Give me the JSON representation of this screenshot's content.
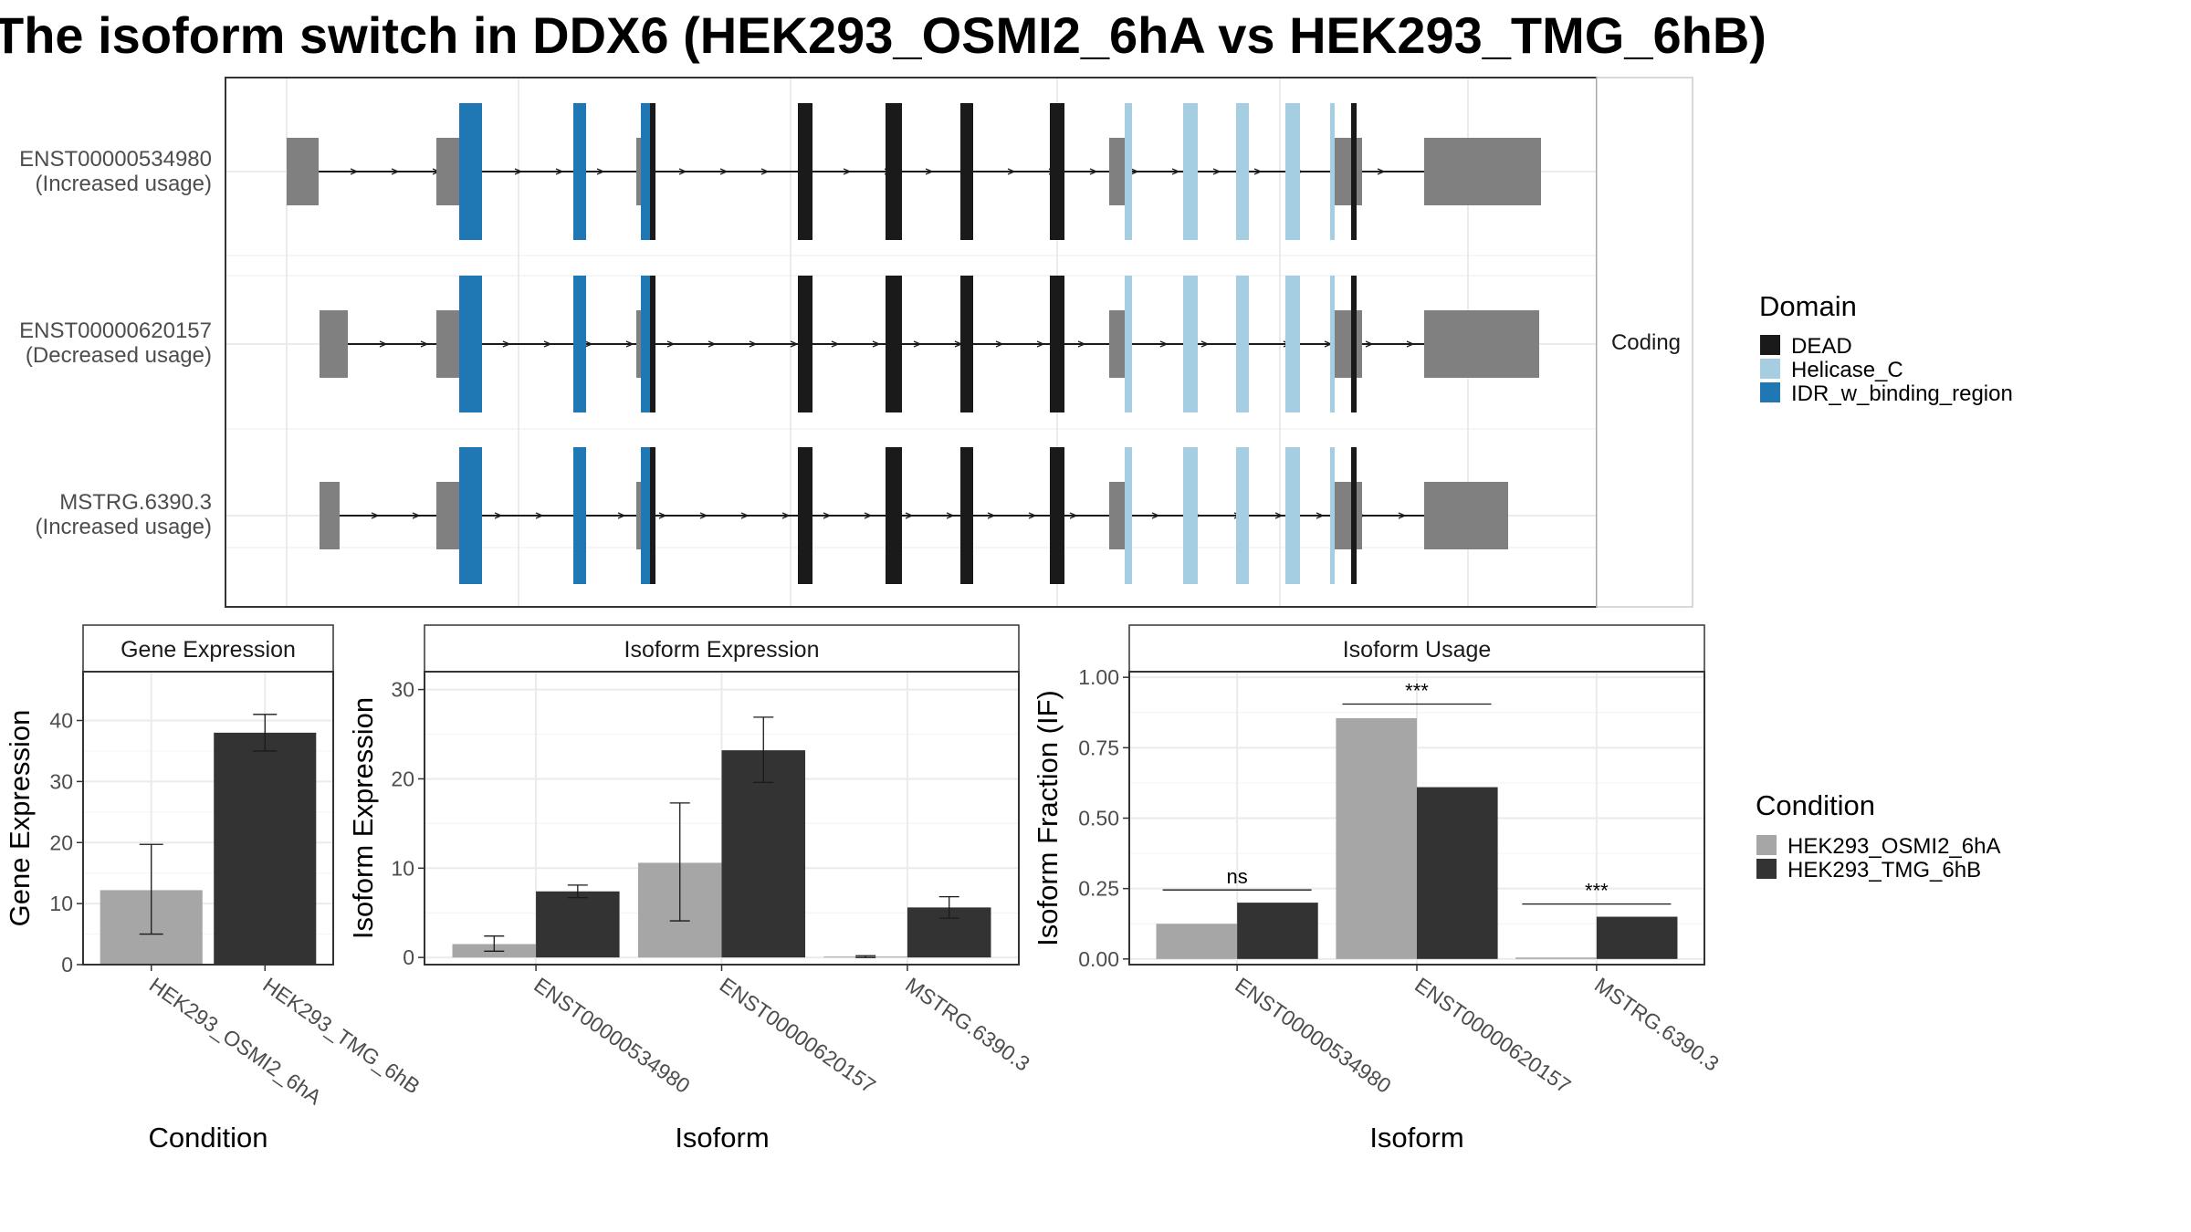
{
  "title": "The isoform switch in DDX6 (HEK293_OSMI2_6hA vs HEK293_TMG_6hB)",
  "colors": {
    "DEAD": "#1a1a1a",
    "Helicase_C": "#a6cee3",
    "IDR_w_binding_region": "#1f78b4",
    "utr": "#808080",
    "HEK293_OSMI2_6hA": "#a6a6a6",
    "HEK293_TMG_6hB": "#333333"
  },
  "transcript_panel": {
    "strip_label": "Coding",
    "transcripts": [
      {
        "id": "ENST00000534980",
        "usage": "(Increased usage)"
      },
      {
        "id": "ENST00000620157",
        "usage": "(Decreased usage)"
      },
      {
        "id": "MSTRG.6390.3",
        "usage": "(Increased usage)"
      }
    ]
  },
  "legend_domain": {
    "title": "Domain",
    "items": [
      "DEAD",
      "Helicase_C",
      "IDR_w_binding_region"
    ]
  },
  "legend_condition": {
    "title": "Condition",
    "items": [
      "HEK293_OSMI2_6hA",
      "HEK293_TMG_6hB"
    ]
  },
  "chart_data": [
    {
      "type": "bar",
      "title": "Gene Expression",
      "xlabel": "Condition",
      "ylabel": "Gene Expression",
      "ylim": [
        0,
        48
      ],
      "yticks": [
        0,
        10,
        20,
        30,
        40
      ],
      "categories": [
        "HEK293_OSMI2_6hA",
        "HEK293_TMG_6hB"
      ],
      "values": [
        12.2,
        38.0
      ],
      "error_low": [
        5.0,
        35.0
      ],
      "error_high": [
        19.7,
        41.0
      ]
    },
    {
      "type": "bar",
      "title": "Isoform Expression",
      "xlabel": "Isoform",
      "ylabel": "Isoform Expression",
      "ylim": [
        -0.8,
        32
      ],
      "yticks": [
        0,
        10,
        20,
        30
      ],
      "categories": [
        "ENST00000534980",
        "ENST00000620157",
        "MSTRG.6390.3"
      ],
      "series": [
        {
          "name": "HEK293_OSMI2_6hA",
          "values": [
            1.5,
            10.6,
            0.1
          ],
          "error_low": [
            0.7,
            4.1,
            0.0
          ],
          "error_high": [
            2.4,
            17.3,
            0.2
          ]
        },
        {
          "name": "HEK293_TMG_6hB",
          "values": [
            7.4,
            23.2,
            5.6
          ],
          "error_low": [
            6.7,
            19.6,
            4.4
          ],
          "error_high": [
            8.1,
            26.9,
            6.8
          ]
        }
      ]
    },
    {
      "type": "bar",
      "title": "Isoform Usage",
      "xlabel": "Isoform",
      "ylabel": "Isoform Fraction (IF)",
      "ylim": [
        -0.02,
        1.02
      ],
      "yticks": [
        0,
        0.25,
        0.5,
        0.75,
        1
      ],
      "ytick_labels": [
        "0.00",
        "0.25",
        "0.50",
        "0.75",
        "1.00"
      ],
      "categories": [
        "ENST00000534980",
        "ENST00000620157",
        "MSTRG.6390.3"
      ],
      "series": [
        {
          "name": "HEK293_OSMI2_6hA",
          "values": [
            0.125,
            0.855,
            0.005
          ]
        },
        {
          "name": "HEK293_TMG_6hB",
          "values": [
            0.2,
            0.61,
            0.15
          ]
        }
      ],
      "significance": [
        {
          "label": "ns",
          "y": 0.245
        },
        {
          "label": "***",
          "y": 0.905
        },
        {
          "label": "***",
          "y": 0.195
        }
      ]
    }
  ]
}
